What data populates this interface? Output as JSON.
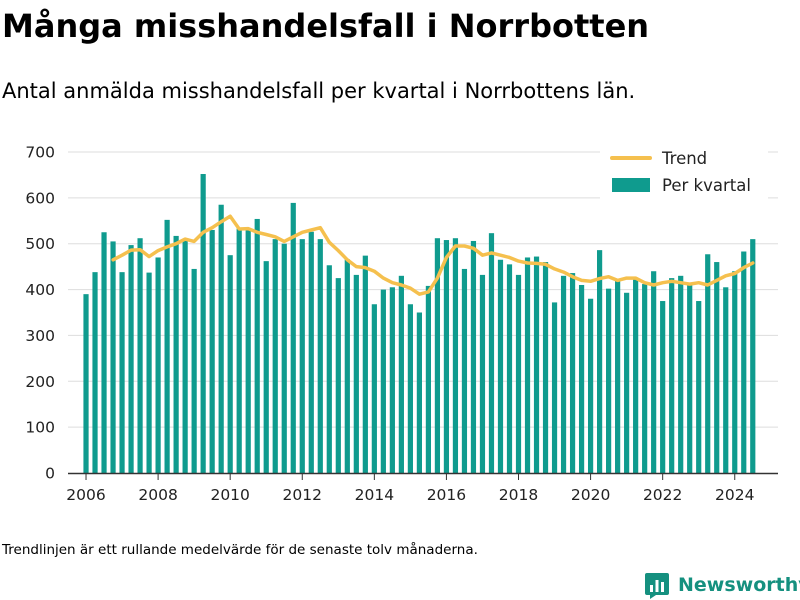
{
  "title": "Många misshandelsfall i Norrbotten",
  "subtitle": "Antal anmälda misshandelsfall per kvartal i Norrbottens län.",
  "footnote": "Trendlinjen är ett rullande medelvärde för de senaste tolv månaderna.",
  "brand": {
    "name": "Newsworthy"
  },
  "colors": {
    "bars": "#0f9b8e",
    "trend": "#f5c04e",
    "grid": "#dddddd",
    "axis": "#333333"
  },
  "chart_data": {
    "type": "bar",
    "ylim": [
      0,
      700
    ],
    "yticks": [
      0,
      100,
      200,
      300,
      400,
      500,
      600,
      700
    ],
    "xlim": [
      2005.5,
      2025.2
    ],
    "xticks": [
      2006,
      2008,
      2010,
      2012,
      2014,
      2016,
      2018,
      2020,
      2022,
      2024
    ],
    "grid": true,
    "legend_position": "top-right",
    "x": [
      2006.0,
      2006.25,
      2006.5,
      2006.75,
      2007.0,
      2007.25,
      2007.5,
      2007.75,
      2008.0,
      2008.25,
      2008.5,
      2008.75,
      2009.0,
      2009.25,
      2009.5,
      2009.75,
      2010.0,
      2010.25,
      2010.5,
      2010.75,
      2011.0,
      2011.25,
      2011.5,
      2011.75,
      2012.0,
      2012.25,
      2012.5,
      2012.75,
      2013.0,
      2013.25,
      2013.5,
      2013.75,
      2014.0,
      2014.25,
      2014.5,
      2014.75,
      2015.0,
      2015.25,
      2015.5,
      2015.75,
      2016.0,
      2016.25,
      2016.5,
      2016.75,
      2017.0,
      2017.25,
      2017.5,
      2017.75,
      2018.0,
      2018.25,
      2018.5,
      2018.75,
      2019.0,
      2019.25,
      2019.5,
      2019.75,
      2020.0,
      2020.25,
      2020.5,
      2020.75,
      2021.0,
      2021.25,
      2021.5,
      2021.75,
      2022.0,
      2022.25,
      2022.5,
      2022.75,
      2023.0,
      2023.25,
      2023.5,
      2023.75,
      2024.0,
      2024.25,
      2024.5
    ],
    "series": [
      {
        "name": "Per kvartal",
        "kind": "bar",
        "values": [
          390,
          438,
          525,
          505,
          438,
          497,
          512,
          437,
          470,
          552,
          517,
          509,
          445,
          652,
          530,
          585,
          475,
          533,
          530,
          554,
          462,
          510,
          500,
          589,
          510,
          526,
          510,
          453,
          425,
          466,
          432,
          474,
          368,
          400,
          405,
          430,
          368,
          350,
          408,
          512,
          508,
          512,
          445,
          506,
          432,
          523,
          465,
          455,
          432,
          470,
          472,
          460,
          372,
          430,
          436,
          410,
          380,
          486,
          402,
          422,
          393,
          425,
          412,
          440,
          375,
          425,
          430,
          412,
          375,
          477,
          460,
          405,
          440,
          483,
          510
        ]
      },
      {
        "name": "Trend",
        "kind": "line",
        "x": [
          2006.75,
          2007.0,
          2007.25,
          2007.5,
          2007.75,
          2008.0,
          2008.25,
          2008.5,
          2008.75,
          2009.0,
          2009.25,
          2009.5,
          2009.75,
          2010.0,
          2010.25,
          2010.5,
          2010.75,
          2011.0,
          2011.25,
          2011.5,
          2011.75,
          2012.0,
          2012.25,
          2012.5,
          2012.75,
          2013.0,
          2013.25,
          2013.5,
          2013.75,
          2014.0,
          2014.25,
          2014.5,
          2014.75,
          2015.0,
          2015.25,
          2015.5,
          2015.75,
          2016.0,
          2016.25,
          2016.5,
          2016.75,
          2017.0,
          2017.25,
          2017.5,
          2017.75,
          2018.0,
          2018.25,
          2018.5,
          2018.75,
          2019.0,
          2019.25,
          2019.5,
          2019.75,
          2020.0,
          2020.25,
          2020.5,
          2020.75,
          2021.0,
          2021.25,
          2021.5,
          2021.75,
          2022.0,
          2022.25,
          2022.5,
          2022.75,
          2023.0,
          2023.25,
          2023.5,
          2023.75,
          2024.0,
          2024.25,
          2024.5
        ],
        "values": [
          465,
          475,
          486,
          487,
          472,
          485,
          493,
          500,
          510,
          505,
          525,
          535,
          548,
          560,
          532,
          533,
          525,
          520,
          515,
          505,
          515,
          525,
          530,
          535,
          503,
          485,
          465,
          450,
          448,
          440,
          425,
          415,
          410,
          403,
          390,
          395,
          425,
          470,
          495,
          495,
          490,
          475,
          480,
          475,
          470,
          462,
          458,
          457,
          455,
          445,
          438,
          428,
          420,
          418,
          424,
          428,
          420,
          425,
          425,
          415,
          410,
          415,
          418,
          415,
          412,
          415,
          410,
          420,
          430,
          435,
          448,
          458
        ]
      }
    ],
    "legend": [
      "Trend",
      "Per kvartal"
    ]
  }
}
